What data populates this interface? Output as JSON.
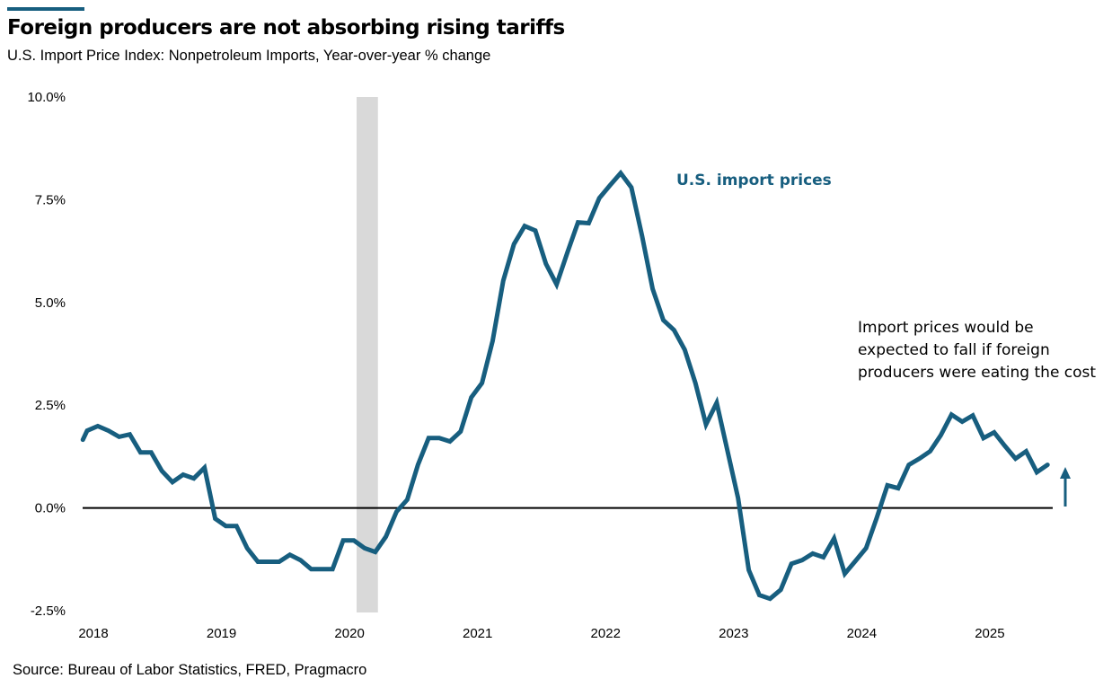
{
  "colors": {
    "line": "#175e7f",
    "recession": "#d9d9d9",
    "zero": "#000000"
  },
  "header": {
    "title": "Foreign producers are not absorbing rising tariffs",
    "subtitle": "U.S. Import Price Index: Nonpetroleum Imports, Year-over-year % change"
  },
  "footer": {
    "source": "Source: Bureau of Labor Statistics, FRED, Pragmacro"
  },
  "chart_data": {
    "type": "line",
    "title": "Foreign producers are not absorbing rising tariffs",
    "subtitle": "U.S. Import Price Index: Nonpetroleum Imports, Year-over-year % change",
    "xlabel": "",
    "ylabel": "",
    "start": "2018-01",
    "frequency": "monthly",
    "ylim": [
      -2.5,
      10
    ],
    "yticks": [
      -2.5,
      0,
      2.5,
      5,
      7.5,
      10
    ],
    "ytick_labels": [
      "-2.5%",
      "0.0%",
      "2.5%",
      "5.0%",
      "7.5%",
      "10.0%"
    ],
    "xtick_labels": [
      "2018",
      "2019",
      "2020",
      "2021",
      "2022",
      "2023",
      "2024",
      "2025"
    ],
    "grid": false,
    "recession": {
      "start": "2020-02",
      "end": "2020-04"
    },
    "series": [
      {
        "name": "U.S. import prices",
        "values": [
          1.88,
          1.99,
          1.88,
          1.73,
          1.79,
          1.35,
          1.35,
          0.9,
          0.63,
          0.81,
          0.72,
          0.98,
          -0.26,
          -0.44,
          -0.44,
          -0.98,
          -1.31,
          -1.31,
          -1.31,
          -1.14,
          -1.27,
          -1.49,
          -1.49,
          -1.49,
          -0.79,
          -0.79,
          -0.98,
          -1.07,
          -0.7,
          -0.09,
          0.2,
          1.05,
          1.7,
          1.7,
          1.62,
          1.86,
          2.69,
          3.04,
          4.06,
          5.53,
          6.42,
          6.86,
          6.75,
          5.94,
          5.44,
          6.21,
          6.95,
          6.93,
          7.54,
          7.85,
          8.15,
          7.8,
          6.62,
          5.33,
          4.57,
          4.33,
          3.85,
          3.04,
          2.03,
          2.56,
          1.4,
          0.24,
          -1.51,
          -2.12,
          -2.21,
          -1.99,
          -1.36,
          -1.27,
          -1.11,
          -1.2,
          -0.74,
          -1.6,
          -1.29,
          -0.98,
          -0.24,
          0.55,
          0.48,
          1.05,
          1.2,
          1.38,
          1.77,
          2.27,
          2.1,
          2.25,
          1.7,
          1.84,
          1.51,
          1.2,
          1.38,
          0.87,
          1.05
        ]
      }
    ],
    "annotations": [
      {
        "text": [
          "Import prices would be",
          "expected to fall if foreign",
          "producers were eating the cost"
        ],
        "arrow": "up"
      }
    ]
  }
}
